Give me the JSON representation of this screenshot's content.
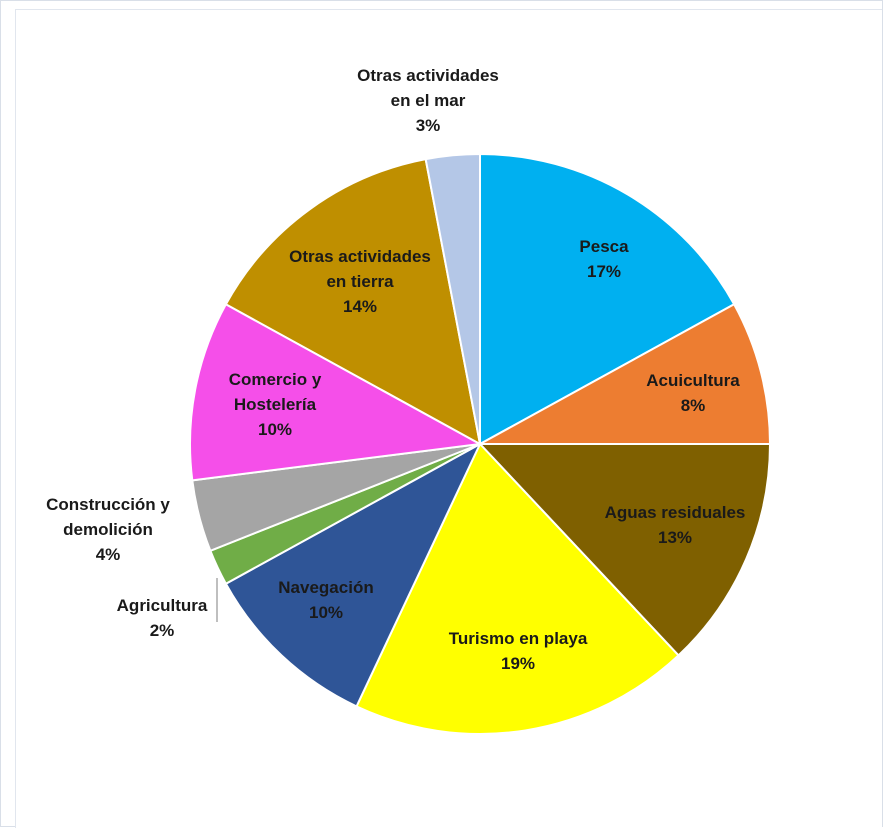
{
  "chart_data": {
    "type": "pie",
    "title": "",
    "slices": [
      {
        "label": "Pesca",
        "value": 17,
        "value_label": "17%",
        "color": "#00b0f0"
      },
      {
        "label": "Acuicultura",
        "value": 8,
        "value_label": "8%",
        "color": "#ed7d31"
      },
      {
        "label": "Aguas residuales",
        "value": 13,
        "value_label": "13%",
        "color": "#7f6000"
      },
      {
        "label": "Turismo en playa",
        "value": 19,
        "value_label": "19%",
        "color": "#ffff00"
      },
      {
        "label": "Navegación",
        "value": 10,
        "value_label": "10%",
        "color": "#2f5597"
      },
      {
        "label": "Agricultura",
        "value": 2,
        "value_label": "2%",
        "color": "#70ad47"
      },
      {
        "label": "Construcción y demolición",
        "value": 4,
        "value_label": "4%",
        "color": "#a5a5a5"
      },
      {
        "label": "Comercio y Hostelería",
        "value": 10,
        "value_label": "10%",
        "color": "#f54fe9"
      },
      {
        "label": "Otras actividades en tierra",
        "value": 14,
        "value_label": "14%",
        "color": "#bf8f00"
      },
      {
        "label": "Otras actividades en el mar",
        "value": 3,
        "value_label": "3%",
        "color": "#b4c7e7"
      }
    ],
    "data_labels": true,
    "legend": "none"
  }
}
